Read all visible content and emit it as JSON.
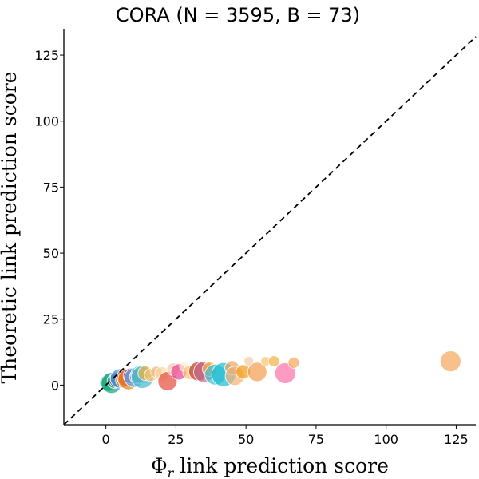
{
  "chart_data": {
    "type": "scatter",
    "title": "CORA (N = 3595, B = 73)",
    "xlabel": "Φ",
    "xlabel_sub": "r",
    "xlabel_rest": " link prediction score",
    "ylabel": "Theoretic link prediction score",
    "xlim": [
      -15,
      132
    ],
    "ylim": [
      -15,
      135
    ],
    "xticks": [
      0,
      25,
      50,
      75,
      100,
      125
    ],
    "yticks": [
      0,
      25,
      50,
      75,
      100,
      125
    ],
    "xtick_labels": [
      "0",
      "25",
      "50",
      "75",
      "100",
      "125"
    ],
    "ytick_labels": [
      "0",
      "25",
      "50",
      "75",
      "100",
      "125"
    ],
    "reference_line": "y = x (dashed)",
    "points": [
      {
        "x": 0.5,
        "y": 0.5,
        "s": 8,
        "c": "#1abc9c"
      },
      {
        "x": 1.0,
        "y": 1.0,
        "s": 11,
        "c": "#2ecc71"
      },
      {
        "x": 2.0,
        "y": 0.8,
        "s": 13,
        "c": "#16a085"
      },
      {
        "x": 3.0,
        "y": 1.5,
        "s": 9,
        "c": "#27ae60"
      },
      {
        "x": 4.0,
        "y": 2.0,
        "s": 10,
        "c": "#9b59b6"
      },
      {
        "x": 5.0,
        "y": 2.5,
        "s": 12,
        "c": "#3498db"
      },
      {
        "x": 6.0,
        "y": 1.8,
        "s": 9,
        "c": "#f39c12"
      },
      {
        "x": 7.0,
        "y": 3.0,
        "s": 11,
        "c": "#e74c3c"
      },
      {
        "x": 8.0,
        "y": 2.2,
        "s": 13,
        "c": "#e67e22"
      },
      {
        "x": 9.0,
        "y": 3.5,
        "s": 10,
        "c": "#8e44ad"
      },
      {
        "x": 10.0,
        "y": 2.8,
        "s": 12,
        "c": "#5dade2"
      },
      {
        "x": 11.0,
        "y": 3.2,
        "s": 9,
        "c": "#af7ac5"
      },
      {
        "x": 12.0,
        "y": 4.0,
        "s": 11,
        "c": "#48c9b0"
      },
      {
        "x": 13.0,
        "y": 3.0,
        "s": 14,
        "c": "#45b7d1"
      },
      {
        "x": 14.0,
        "y": 4.5,
        "s": 9,
        "c": "#f5b041"
      },
      {
        "x": 16.0,
        "y": 3.8,
        "s": 8,
        "c": "#f8c471"
      },
      {
        "x": 18.0,
        "y": 5.0,
        "s": 7,
        "c": "#f0b27a"
      },
      {
        "x": 20.0,
        "y": 4.2,
        "s": 9,
        "c": "#fad7a0"
      },
      {
        "x": 22.0,
        "y": 1.5,
        "s": 12,
        "c": "#e74c3c"
      },
      {
        "x": 24.0,
        "y": 6.0,
        "s": 8,
        "c": "#f5cba7"
      },
      {
        "x": 26.0,
        "y": 5.0,
        "s": 10,
        "c": "#e84393"
      },
      {
        "x": 28.0,
        "y": 7.0,
        "s": 6,
        "c": "#fdebd0"
      },
      {
        "x": 30.0,
        "y": 4.8,
        "s": 9,
        "c": "#f8c471"
      },
      {
        "x": 33.0,
        "y": 5.2,
        "s": 12,
        "c": "#c0392b"
      },
      {
        "x": 35.0,
        "y": 5.0,
        "s": 13,
        "c": "#c0668b"
      },
      {
        "x": 37.0,
        "y": 6.0,
        "s": 9,
        "c": "#f5b041"
      },
      {
        "x": 39.0,
        "y": 4.0,
        "s": 13,
        "c": "#3ec1d3"
      },
      {
        "x": 42.0,
        "y": 4.0,
        "s": 15,
        "c": "#1abcd3"
      },
      {
        "x": 45.0,
        "y": 6.5,
        "s": 9,
        "c": "#f0a35e"
      },
      {
        "x": 46.0,
        "y": 3.5,
        "s": 12,
        "c": "#f5b07a"
      },
      {
        "x": 49.0,
        "y": 5.0,
        "s": 9,
        "c": "#f39c12"
      },
      {
        "x": 51.0,
        "y": 9.0,
        "s": 6,
        "c": "#f5cba7"
      },
      {
        "x": 54.0,
        "y": 5.0,
        "s": 12,
        "c": "#f39c4e"
      },
      {
        "x": 57.0,
        "y": 9.0,
        "s": 6,
        "c": "#f8c471"
      },
      {
        "x": 60.0,
        "y": 9.0,
        "s": 7,
        "c": "#f5b041"
      },
      {
        "x": 64.0,
        "y": 4.5,
        "s": 13,
        "c": "#ff6fa8"
      },
      {
        "x": 67.0,
        "y": 8.5,
        "s": 7,
        "c": "#f5a65b"
      },
      {
        "x": 123.0,
        "y": 9.0,
        "s": 13,
        "c": "#f5a65b"
      }
    ]
  }
}
